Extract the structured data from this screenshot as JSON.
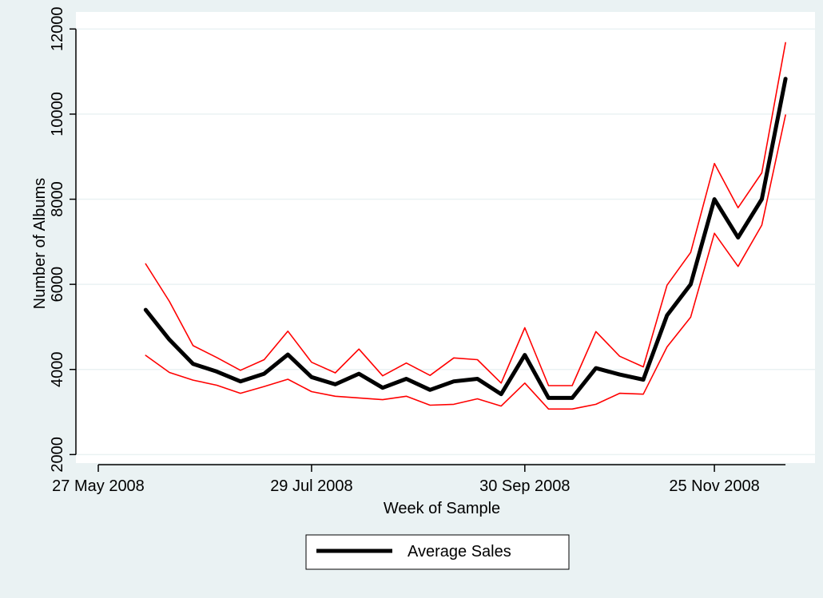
{
  "chart_data": {
    "type": "line",
    "xlabel": "Week of Sample",
    "ylabel": "Number of Albums",
    "x_ticks": [
      {
        "date": "2008-05-27",
        "label": "27 May 2008"
      },
      {
        "date": "2008-07-29",
        "label": "29 Jul 2008"
      },
      {
        "date": "2008-09-30",
        "label": "30 Sep 2008"
      },
      {
        "date": "2008-11-25",
        "label": "25 Nov 2008"
      }
    ],
    "y_ticks": [
      2000,
      4000,
      6000,
      8000,
      10000,
      12000
    ],
    "ylim": [
      1800,
      12400
    ],
    "xlim": [
      "2008-05-27",
      "2008-12-20"
    ],
    "grid": true,
    "legend_placement": "bottom",
    "x": [
      "2008-06-10",
      "2008-06-17",
      "2008-06-24",
      "2008-07-01",
      "2008-07-08",
      "2008-07-15",
      "2008-07-22",
      "2008-07-29",
      "2008-08-05",
      "2008-08-12",
      "2008-08-19",
      "2008-08-26",
      "2008-09-02",
      "2008-09-09",
      "2008-09-16",
      "2008-09-23",
      "2008-09-30",
      "2008-10-07",
      "2008-10-14",
      "2008-10-21",
      "2008-10-28",
      "2008-11-04",
      "2008-11-11",
      "2008-11-18",
      "2008-11-25",
      "2008-12-02",
      "2008-12-09",
      "2008-12-16"
    ],
    "series": [
      {
        "name": "Average Sales",
        "role": "mean",
        "color": "#000000",
        "values": [
          5400,
          4700,
          4130,
          3950,
          3720,
          3900,
          4350,
          3820,
          3650,
          3900,
          3570,
          3780,
          3520,
          3720,
          3780,
          3420,
          4340,
          3330,
          3330,
          4030,
          3880,
          3760,
          5270,
          6000,
          8000,
          7100,
          8000,
          10830
        ]
      },
      {
        "role": "upper",
        "color": "#ff0000",
        "values": [
          6480,
          5600,
          4560,
          4280,
          3980,
          4230,
          4900,
          4170,
          3920,
          4480,
          3850,
          4150,
          3860,
          4270,
          4230,
          3680,
          4980,
          3620,
          3620,
          4890,
          4310,
          4060,
          5980,
          6750,
          8840,
          7800,
          8620,
          11680
        ]
      },
      {
        "role": "lower",
        "color": "#ff0000",
        "values": [
          4330,
          3930,
          3750,
          3630,
          3440,
          3600,
          3770,
          3480,
          3370,
          3330,
          3290,
          3370,
          3160,
          3180,
          3310,
          3140,
          3680,
          3070,
          3070,
          3180,
          3440,
          3420,
          4530,
          5230,
          7200,
          6420,
          7390,
          9980
        ]
      }
    ],
    "legend": [
      {
        "label": "Average Sales",
        "color": "#000000"
      }
    ]
  },
  "colors": {
    "outer_background": "#eaf2f3",
    "plot_background": "#ffffff",
    "gridline": "#eaf2f3",
    "axis": "#000000"
  }
}
